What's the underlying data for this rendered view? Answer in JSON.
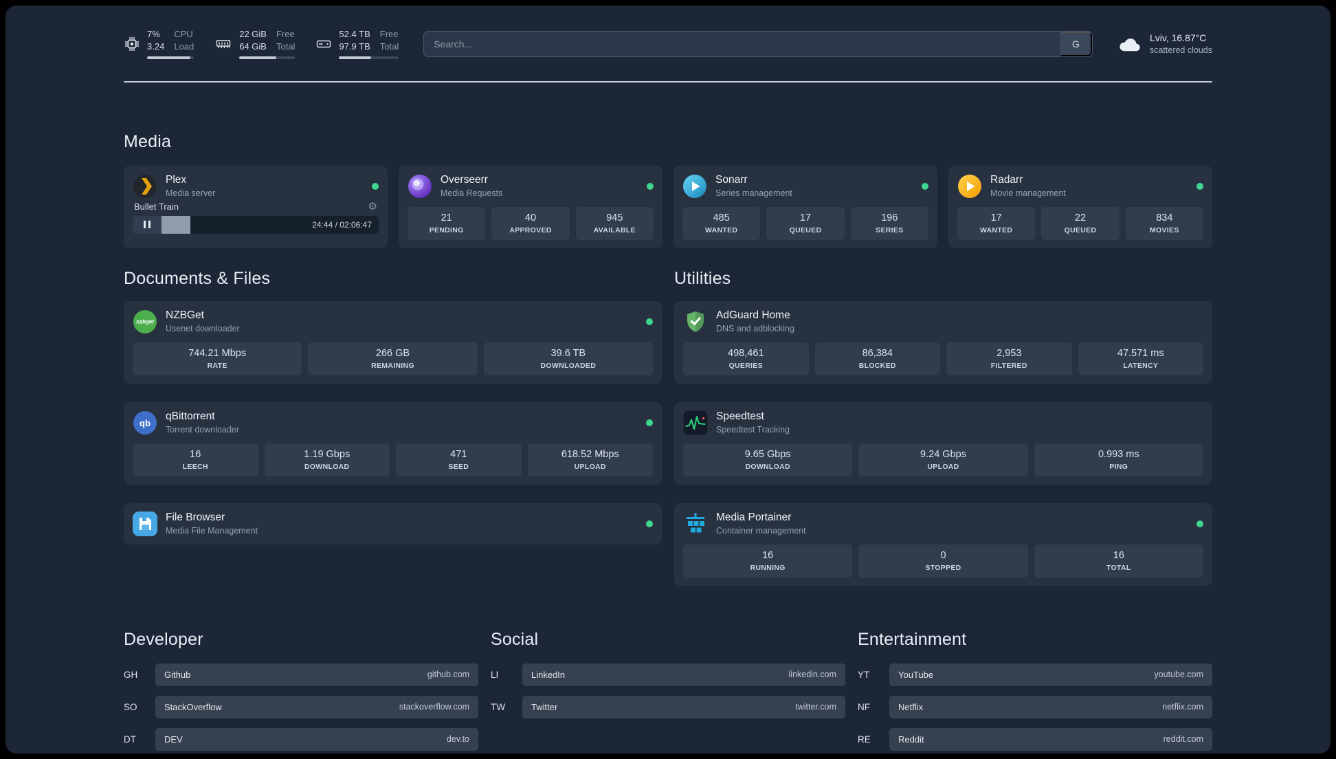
{
  "colors": {
    "status_online": "#3fd68f",
    "plex_accent": "#e5a00d",
    "sonarr_blue": "#35c5f4",
    "radarr_gold": "#f7b928",
    "nzbget_green": "#4cae4c",
    "qbittorrent_blue": "#3e6fc9",
    "filebrowser_blue": "#47a8e5",
    "adguard_green": "#63b663",
    "speedtest_green": "#2bd47d",
    "portainer_blue": "#1fa9dd"
  },
  "topbar": {
    "cpu": {
      "value_top": "7%",
      "value_bottom": "3.24",
      "label_top": "CPU",
      "label_bottom": "Load",
      "bar_pct": 93
    },
    "memory": {
      "value_top": "22 GiB",
      "value_bottom": "64 GiB",
      "label_top": "Free",
      "label_bottom": "Total",
      "bar_pct": 66
    },
    "disk": {
      "value_top": "52.4 TB",
      "value_bottom": "97.9 TB",
      "label_top": "Free",
      "label_bottom": "Total",
      "bar_pct": 54
    },
    "search": {
      "placeholder": "Search...",
      "engine_button": "G"
    },
    "weather": {
      "location": "Lviv, 16.87°C",
      "condition": "scattered clouds"
    }
  },
  "sections": {
    "media": "Media",
    "documents": "Documents & Files",
    "utilities": "Utilities",
    "developer": "Developer",
    "social": "Social",
    "entertainment": "Entertainment"
  },
  "services": {
    "plex": {
      "name": "Plex",
      "desc": "Media server",
      "status": "online",
      "player": {
        "title": "Bullet Train",
        "time_display": "24:44 / 02:06:47",
        "progress_pct": 20
      }
    },
    "overseerr": {
      "name": "Overseerr",
      "desc": "Media Requests",
      "status": "online",
      "stats": [
        {
          "value": "21",
          "label": "PENDING"
        },
        {
          "value": "40",
          "label": "APPROVED"
        },
        {
          "value": "945",
          "label": "AVAILABLE"
        }
      ]
    },
    "sonarr": {
      "name": "Sonarr",
      "desc": "Series management",
      "status": "online",
      "stats": [
        {
          "value": "485",
          "label": "WANTED"
        },
        {
          "value": "17",
          "label": "QUEUED"
        },
        {
          "value": "196",
          "label": "SERIES"
        }
      ]
    },
    "radarr": {
      "name": "Radarr",
      "desc": "Movie management",
      "status": "online",
      "stats": [
        {
          "value": "17",
          "label": "WANTED"
        },
        {
          "value": "22",
          "label": "QUEUED"
        },
        {
          "value": "834",
          "label": "MOVIES"
        }
      ]
    },
    "nzbget": {
      "name": "NZBGet",
      "desc": "Usenet downloader",
      "status": "online",
      "stats": [
        {
          "value": "744.21 Mbps",
          "label": "RATE"
        },
        {
          "value": "266 GB",
          "label": "REMAINING"
        },
        {
          "value": "39.6 TB",
          "label": "DOWNLOADED"
        }
      ]
    },
    "qbittorrent": {
      "name": "qBittorrent",
      "desc": "Torrent downloader",
      "status": "online",
      "stats": [
        {
          "value": "16",
          "label": "LEECH"
        },
        {
          "value": "1.19 Gbps",
          "label": "DOWNLOAD"
        },
        {
          "value": "471",
          "label": "SEED"
        },
        {
          "value": "618.52 Mbps",
          "label": "UPLOAD"
        }
      ]
    },
    "filebrowser": {
      "name": "File Browser",
      "desc": "Media File Management",
      "status": "online"
    },
    "adguard": {
      "name": "AdGuard Home",
      "desc": "DNS and adblocking",
      "stats": [
        {
          "value": "498,461",
          "label": "QUERIES"
        },
        {
          "value": "86,384",
          "label": "BLOCKED"
        },
        {
          "value": "2,953",
          "label": "FILTERED"
        },
        {
          "value": "47.571 ms",
          "label": "LATENCY"
        }
      ]
    },
    "speedtest": {
      "name": "Speedtest",
      "desc": "Speedtest Tracking",
      "stats": [
        {
          "value": "9.65 Gbps",
          "label": "DOWNLOAD"
        },
        {
          "value": "9.24 Gbps",
          "label": "UPLOAD"
        },
        {
          "value": "0.993 ms",
          "label": "PING"
        }
      ]
    },
    "portainer": {
      "name": "Media Portainer",
      "desc": "Container management",
      "status": "online",
      "stats": [
        {
          "value": "16",
          "label": "RUNNING"
        },
        {
          "value": "0",
          "label": "STOPPED"
        },
        {
          "value": "16",
          "label": "TOTAL"
        }
      ]
    }
  },
  "bookmarks": {
    "developer": [
      {
        "abbr": "GH",
        "name": "Github",
        "domain": "github.com"
      },
      {
        "abbr": "SO",
        "name": "StackOverflow",
        "domain": "stackoverflow.com"
      },
      {
        "abbr": "DT",
        "name": "DEV",
        "domain": "dev.to"
      }
    ],
    "social": [
      {
        "abbr": "LI",
        "name": "LinkedIn",
        "domain": "linkedin.com"
      },
      {
        "abbr": "TW",
        "name": "Twitter",
        "domain": "twitter.com"
      }
    ],
    "entertainment": [
      {
        "abbr": "YT",
        "name": "YouTube",
        "domain": "youtube.com"
      },
      {
        "abbr": "NF",
        "name": "Netflix",
        "domain": "netflix.com"
      },
      {
        "abbr": "RE",
        "name": "Reddit",
        "domain": "reddit.com"
      }
    ]
  }
}
